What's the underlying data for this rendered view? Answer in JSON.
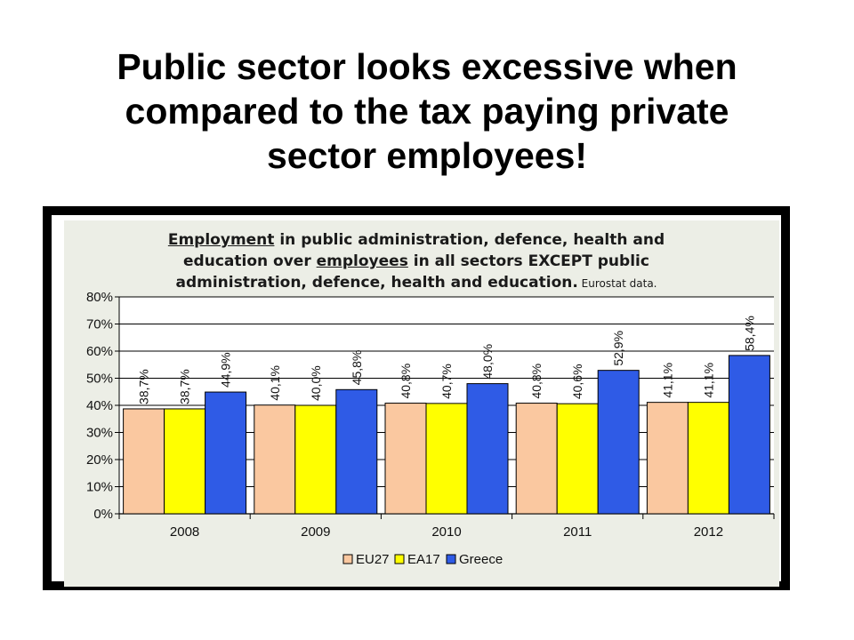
{
  "slide": {
    "title_lines": [
      "Public sector looks excessive when",
      "compared to the  tax paying private",
      "sector employees!"
    ]
  },
  "chart_data": {
    "type": "bar",
    "title": {
      "part1": "Employment",
      "part2": " in public administration, defence, health and education over ",
      "part3": "employees",
      "part4": " in all sectors EXCEPT public administration, defence, health and education.",
      "note": " Eurostat data."
    },
    "categories": [
      "2008",
      "2009",
      "2010",
      "2011",
      "2012"
    ],
    "series": [
      {
        "name": "EU27",
        "color": "#fac8a0",
        "values": [
          38.7,
          40.1,
          40.8,
          40.8,
          41.1
        ],
        "labels": [
          "38,7%",
          "40,1%",
          "40,8%",
          "40,8%",
          "41,1%"
        ]
      },
      {
        "name": "EA17",
        "color": "#ffff00",
        "values": [
          38.7,
          40.0,
          40.7,
          40.6,
          41.1
        ],
        "labels": [
          "38,7%",
          "40,0%",
          "40,7%",
          "40,6%",
          "41,1%"
        ]
      },
      {
        "name": "Greece",
        "color": "#2f5be6",
        "values": [
          44.9,
          45.8,
          48.0,
          52.9,
          58.4
        ],
        "labels": [
          "44,9%",
          "45,8%",
          "48,0%",
          "52,9%",
          "58,4%"
        ]
      }
    ],
    "ylim": [
      0,
      80
    ],
    "yticks": [
      "0%",
      "10%",
      "20%",
      "30%",
      "40%",
      "50%",
      "60%",
      "70%",
      "80%"
    ],
    "grid": true,
    "legend_position": "bottom"
  }
}
